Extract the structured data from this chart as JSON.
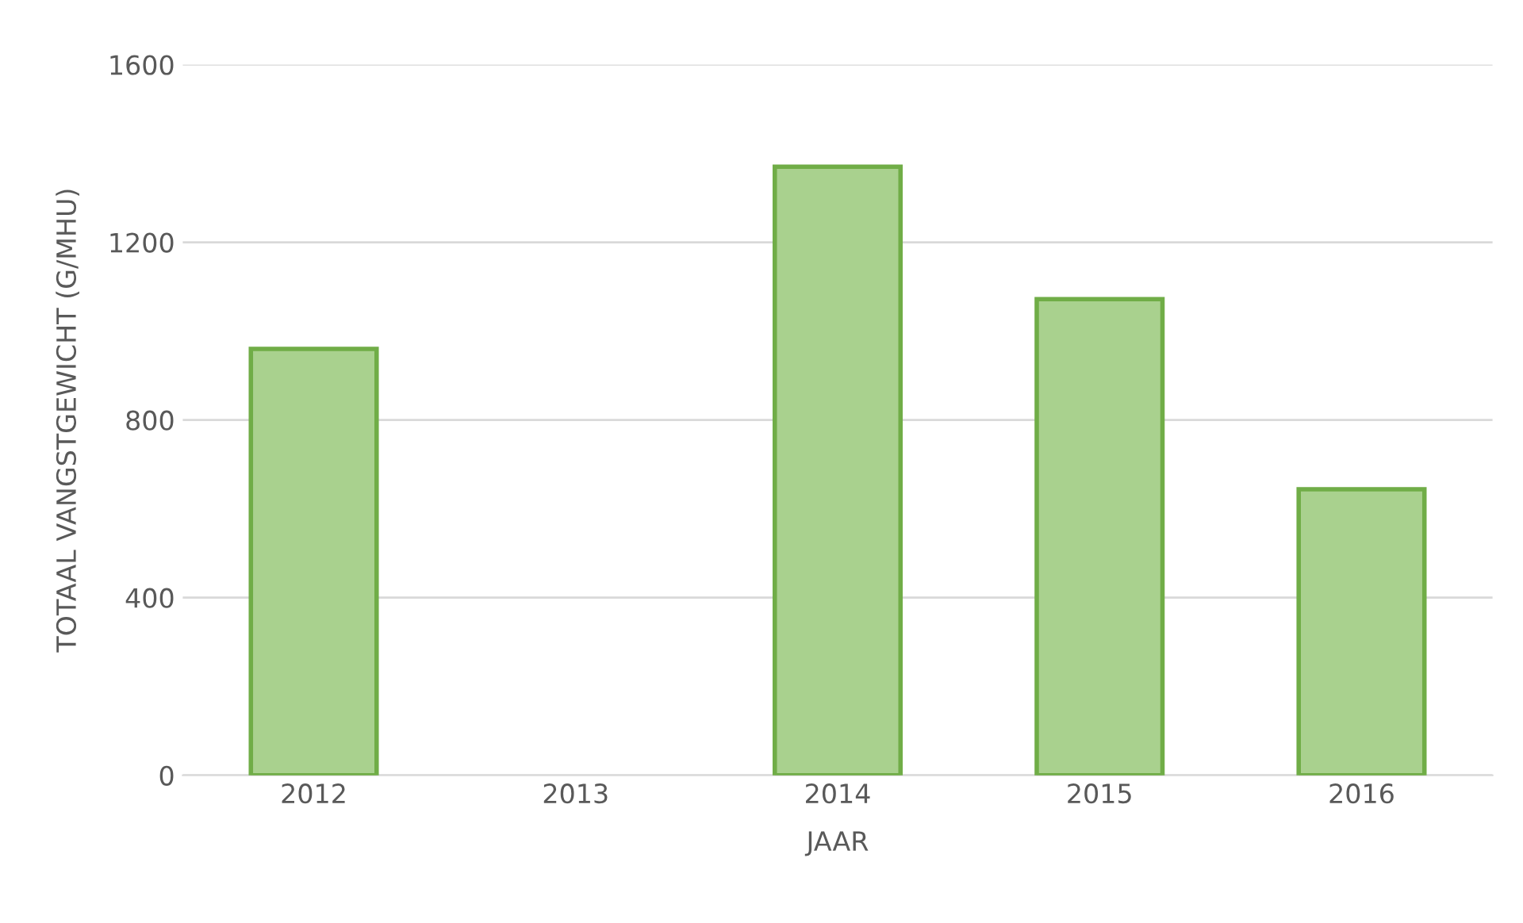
{
  "chart_data": {
    "type": "bar",
    "xlabel": "JAAR",
    "ylabel": "TOTAAL VANGSTGEWICHT (G/MHU)",
    "categories": [
      "2012",
      "2013",
      "2014",
      "2015",
      "2016"
    ],
    "series": [
      {
        "color": "#a9d18e",
        "values": [
          960,
          null,
          1370,
          1072,
          644
        ]
      }
    ],
    "ylim": [
      0,
      1600
    ],
    "yticks": [
      0,
      400,
      800,
      1200,
      1600
    ],
    "grid": "y",
    "legend": false
  }
}
